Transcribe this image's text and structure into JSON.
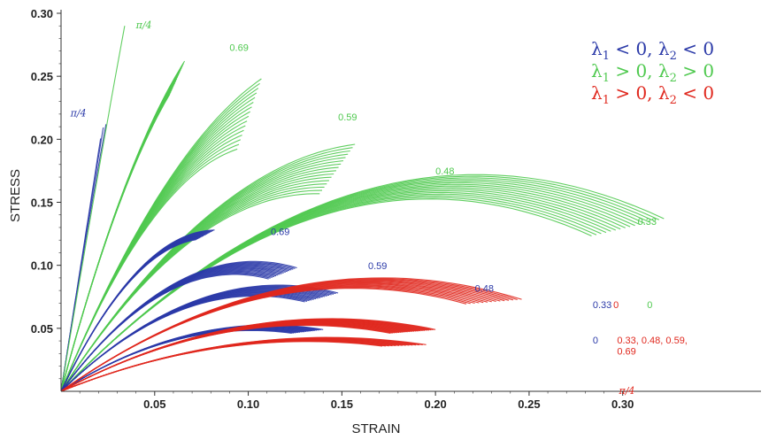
{
  "chart_data": {
    "type": "line",
    "title": "",
    "xlabel": "STRAIN",
    "ylabel": "STRESS",
    "xlim": [
      0,
      0.33
    ],
    "ylim": [
      0,
      0.3
    ],
    "x_ticks": [
      "0.05",
      "0.10",
      "0.15",
      "0.20",
      "0.25",
      "0.30"
    ],
    "y_ticks": [
      "0.05",
      "0.10",
      "0.15",
      "0.20",
      "0.25",
      "0.30"
    ],
    "legend": {
      "placement": "top-right",
      "entries": [
        {
          "label": "λ1 < 0, λ2 < 0",
          "color": "#2b3aa8"
        },
        {
          "label": "λ1 > 0, λ2 > 0",
          "color": "#4fc94f"
        },
        {
          "label": "λ1 > 0, λ2 < 0",
          "color": "#e0281e"
        }
      ]
    },
    "colors": {
      "blue": "#2b3aa8",
      "green": "#4fc94f",
      "red": "#e0281e"
    },
    "annotations": [
      {
        "text": "π/4",
        "color": "green",
        "x": 0.04,
        "y": 0.288,
        "style": "serif"
      },
      {
        "text": "0.69",
        "color": "green",
        "x": 0.09,
        "y": 0.27
      },
      {
        "text": "π/4",
        "color": "blue",
        "x": 0.005,
        "y": 0.218,
        "style": "serif"
      },
      {
        "text": "0.59",
        "color": "green",
        "x": 0.148,
        "y": 0.215
      },
      {
        "text": "0.48",
        "color": "green",
        "x": 0.2,
        "y": 0.172
      },
      {
        "text": "0.69",
        "color": "blue",
        "x": 0.112,
        "y": 0.124
      },
      {
        "text": "0.33",
        "color": "green",
        "x": 0.308,
        "y": 0.132
      },
      {
        "text": "0.59",
        "color": "blue",
        "x": 0.164,
        "y": 0.097
      },
      {
        "text": "0.48",
        "color": "blue",
        "x": 0.221,
        "y": 0.079
      },
      {
        "text": "0.33",
        "color": "blue",
        "x": 0.284,
        "y": 0.066
      },
      {
        "text": "0",
        "color": "red",
        "x": 0.295,
        "y": 0.066
      },
      {
        "text": "0",
        "color": "green",
        "x": 0.313,
        "y": 0.066
      },
      {
        "text": "0",
        "color": "blue",
        "x": 0.284,
        "y": 0.038
      },
      {
        "text": "0.33, 0.48, 0.59,",
        "color": "red",
        "x": 0.297,
        "y": 0.038
      },
      {
        "text": "0.69",
        "color": "red",
        "x": 0.297,
        "y": 0.029
      },
      {
        "text": "π/4",
        "color": "red",
        "x": 0.298,
        "y": -0.002,
        "style": "serif"
      }
    ],
    "series": [
      {
        "group": "blue",
        "end_x": 0.024,
        "end_y": 0.212,
        "start_slope": 9.5,
        "spread": 0.005,
        "count": 3
      },
      {
        "group": "green",
        "end_x": 0.034,
        "end_y": 0.29,
        "start_slope": 9.0,
        "spread": 0.0,
        "count": 1
      },
      {
        "group": "green",
        "end_x": 0.066,
        "end_y": 0.262,
        "start_slope": 5.6,
        "spread": 0.02,
        "count": 16
      },
      {
        "group": "green",
        "end_x": 0.107,
        "end_y": 0.248,
        "start_slope": 3.6,
        "spread": 0.045,
        "count": 16
      },
      {
        "group": "green",
        "end_x": 0.157,
        "end_y": 0.196,
        "start_slope": 2.3,
        "spread": 0.04,
        "count": 16
      },
      {
        "group": "green",
        "end_x": 0.322,
        "end_y": 0.137,
        "start_slope": 1.55,
        "spread": 0.02,
        "count": 16
      },
      {
        "group": "blue",
        "end_x": 0.082,
        "end_y": 0.128,
        "start_slope": 3.1,
        "spread": 0.012,
        "count": 16
      },
      {
        "group": "blue",
        "end_x": 0.126,
        "end_y": 0.098,
        "start_slope": 2.0,
        "spread": 0.018,
        "count": 16
      },
      {
        "group": "blue",
        "end_x": 0.148,
        "end_y": 0.078,
        "start_slope": 1.45,
        "spread": 0.018,
        "count": 16
      },
      {
        "group": "blue",
        "end_x": 0.14,
        "end_y": 0.049,
        "start_slope": 0.95,
        "spread": 0.012,
        "count": 16
      },
      {
        "group": "red",
        "end_x": 0.246,
        "end_y": 0.073,
        "start_slope": 1.05,
        "spread": 0.01,
        "count": 14
      },
      {
        "group": "red",
        "end_x": 0.2,
        "end_y": 0.049,
        "start_slope": 0.8,
        "spread": 0.012,
        "count": 22
      },
      {
        "group": "red",
        "end_x": 0.195,
        "end_y": 0.037,
        "start_slope": 0.6,
        "spread": 0.006,
        "count": 14
      }
    ]
  }
}
